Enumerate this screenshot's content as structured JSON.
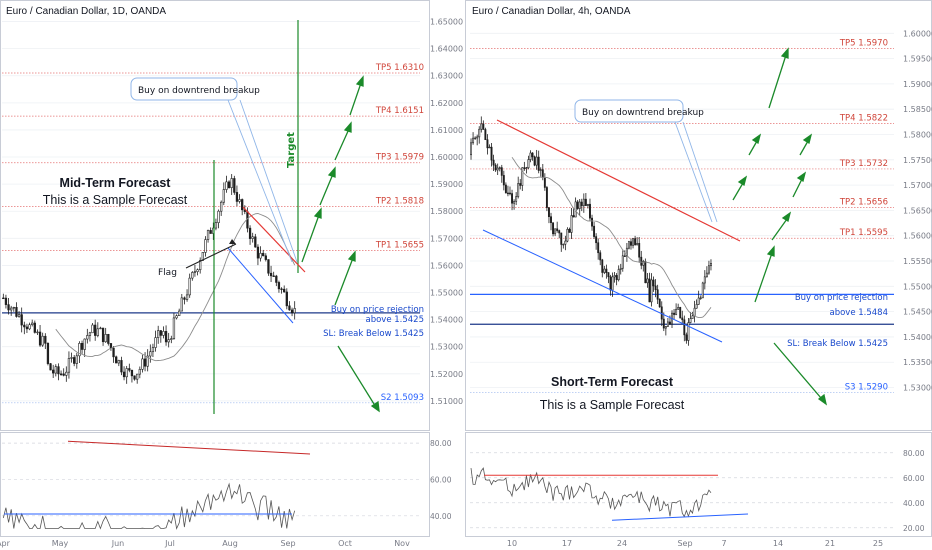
{
  "colors": {
    "bull": "#1e1e1e",
    "bear": "#ffffff",
    "wick": "#1e1e1e",
    "ma": "#8c8c8c",
    "target_line": "#e57373",
    "blue_line": "#2962ff",
    "dark_blue": "#1e3a8a",
    "green": "#1b8a2a",
    "red_trend": "#e53935",
    "panel_border": "#c8ccd6",
    "grid": "#eef0f4"
  },
  "chart_data": [
    {
      "type": "candlestick",
      "title": "Euro / Canadian Dollar, 1D, OANDA",
      "ylim": [
        1.5,
        1.655
      ],
      "yticks": [
        1.51,
        1.52,
        1.53,
        1.54,
        1.55,
        1.56,
        1.57,
        1.58,
        1.59,
        1.6,
        1.61,
        1.62,
        1.63,
        1.64,
        1.65
      ],
      "ytick_labels": [
        "1.51000",
        "1.52000",
        "1.53000",
        "1.54000",
        "1.55000",
        "1.56000",
        "1.57000",
        "1.58000",
        "1.59000",
        "1.60000",
        "1.61000",
        "1.62000",
        "1.63000",
        "1.64000",
        "1.65000"
      ],
      "xtick_labels": [
        "Apr",
        "May",
        "Jun",
        "Jul",
        "Aug",
        "Sep",
        "Oct",
        "Nov"
      ],
      "levels": [
        {
          "label": "TP5",
          "value": 1.631
        },
        {
          "label": "TP4",
          "value": 1.6151
        },
        {
          "label": "TP3",
          "value": 1.5979
        },
        {
          "label": "TP2",
          "value": 1.5818
        },
        {
          "label": "TP1",
          "value": 1.5655
        },
        {
          "label": "S2",
          "value": 1.5093
        }
      ],
      "entry_level": 1.5425,
      "stop_level": 1.5425,
      "candle_seed": 7,
      "candle_start": 1.548,
      "candle_count": 112,
      "candle_end": 1.5445,
      "ma_period": 20,
      "indicator": {
        "yticks": [
          40,
          60,
          80
        ],
        "ytick_labels": [
          "40.00",
          "60.00",
          "80.00"
        ],
        "dashed_level": 50
      }
    },
    {
      "type": "candlestick",
      "title": "Euro / Canadian Dollar, 4h, OANDA",
      "ylim": [
        1.522,
        1.605
      ],
      "yticks": [
        1.53,
        1.535,
        1.54,
        1.545,
        1.55,
        1.555,
        1.56,
        1.565,
        1.57,
        1.575,
        1.58,
        1.585,
        1.59,
        1.595,
        1.6
      ],
      "ytick_labels": [
        "1.53000",
        "1.53500",
        "1.54000",
        "1.54500",
        "1.55000",
        "1.55500",
        "1.56000",
        "1.56500",
        "1.57000",
        "1.57500",
        "1.58000",
        "1.58500",
        "1.59000",
        "1.59500",
        "1.60000"
      ],
      "xtick_labels": [
        "10",
        "17",
        "24",
        "Sep",
        "7",
        "14",
        "21",
        "25"
      ],
      "levels": [
        {
          "label": "TP5",
          "value": 1.597
        },
        {
          "label": "TP4",
          "value": 1.5822
        },
        {
          "label": "TP3",
          "value": 1.5732
        },
        {
          "label": "TP2",
          "value": 1.5656
        },
        {
          "label": "TP1",
          "value": 1.5595
        },
        {
          "label": "S3",
          "value": 1.529
        }
      ],
      "entry_level": 1.5484,
      "stop_level": 1.5425,
      "candle_seed": 19,
      "candle_start": 1.576,
      "candle_count": 118,
      "candle_end": 1.554,
      "ma_period": 20,
      "indicator": {
        "yticks": [
          20,
          40,
          60,
          80
        ],
        "ytick_labels": [
          "20.00",
          "40.00",
          "60.00",
          "80.00"
        ],
        "dashed_level": 50
      }
    }
  ],
  "left": {
    "title": "Euro / Canadian Dollar, 1D, OANDA",
    "heading": "Mid-Term Forecast",
    "subheading": "This is a Sample Forecast",
    "callout": "Buy on downtrend breakup",
    "flag_label": "Flag",
    "target_label": "Target",
    "buy_line1": "Buy on price rejection",
    "buy_line2": "above 1.5425",
    "sl_label": "SL: Break Below 1.5425",
    "tp_labels": [
      "TP5 1.6310",
      "TP4 1.6151",
      "TP3 1.5979",
      "TP2 1.5818",
      "TP1 1.5655"
    ],
    "s_label": "S2 1.5093"
  },
  "right": {
    "title": "Euro / Canadian Dollar, 4h, OANDA",
    "heading": "Short-Term Forecast",
    "subheading": "This is a Sample Forecast",
    "callout": "Buy on downtrend breakup",
    "buy_line1": "Buy on price rejection",
    "buy_line2": "above 1.5484",
    "sl_label": "SL: Break Below 1.5425",
    "tp_labels": [
      "TP5 1.5970",
      "TP4 1.5822",
      "TP3 1.5732",
      "TP2 1.5656",
      "TP1 1.5595"
    ],
    "s_label": "S3 1.5290"
  }
}
